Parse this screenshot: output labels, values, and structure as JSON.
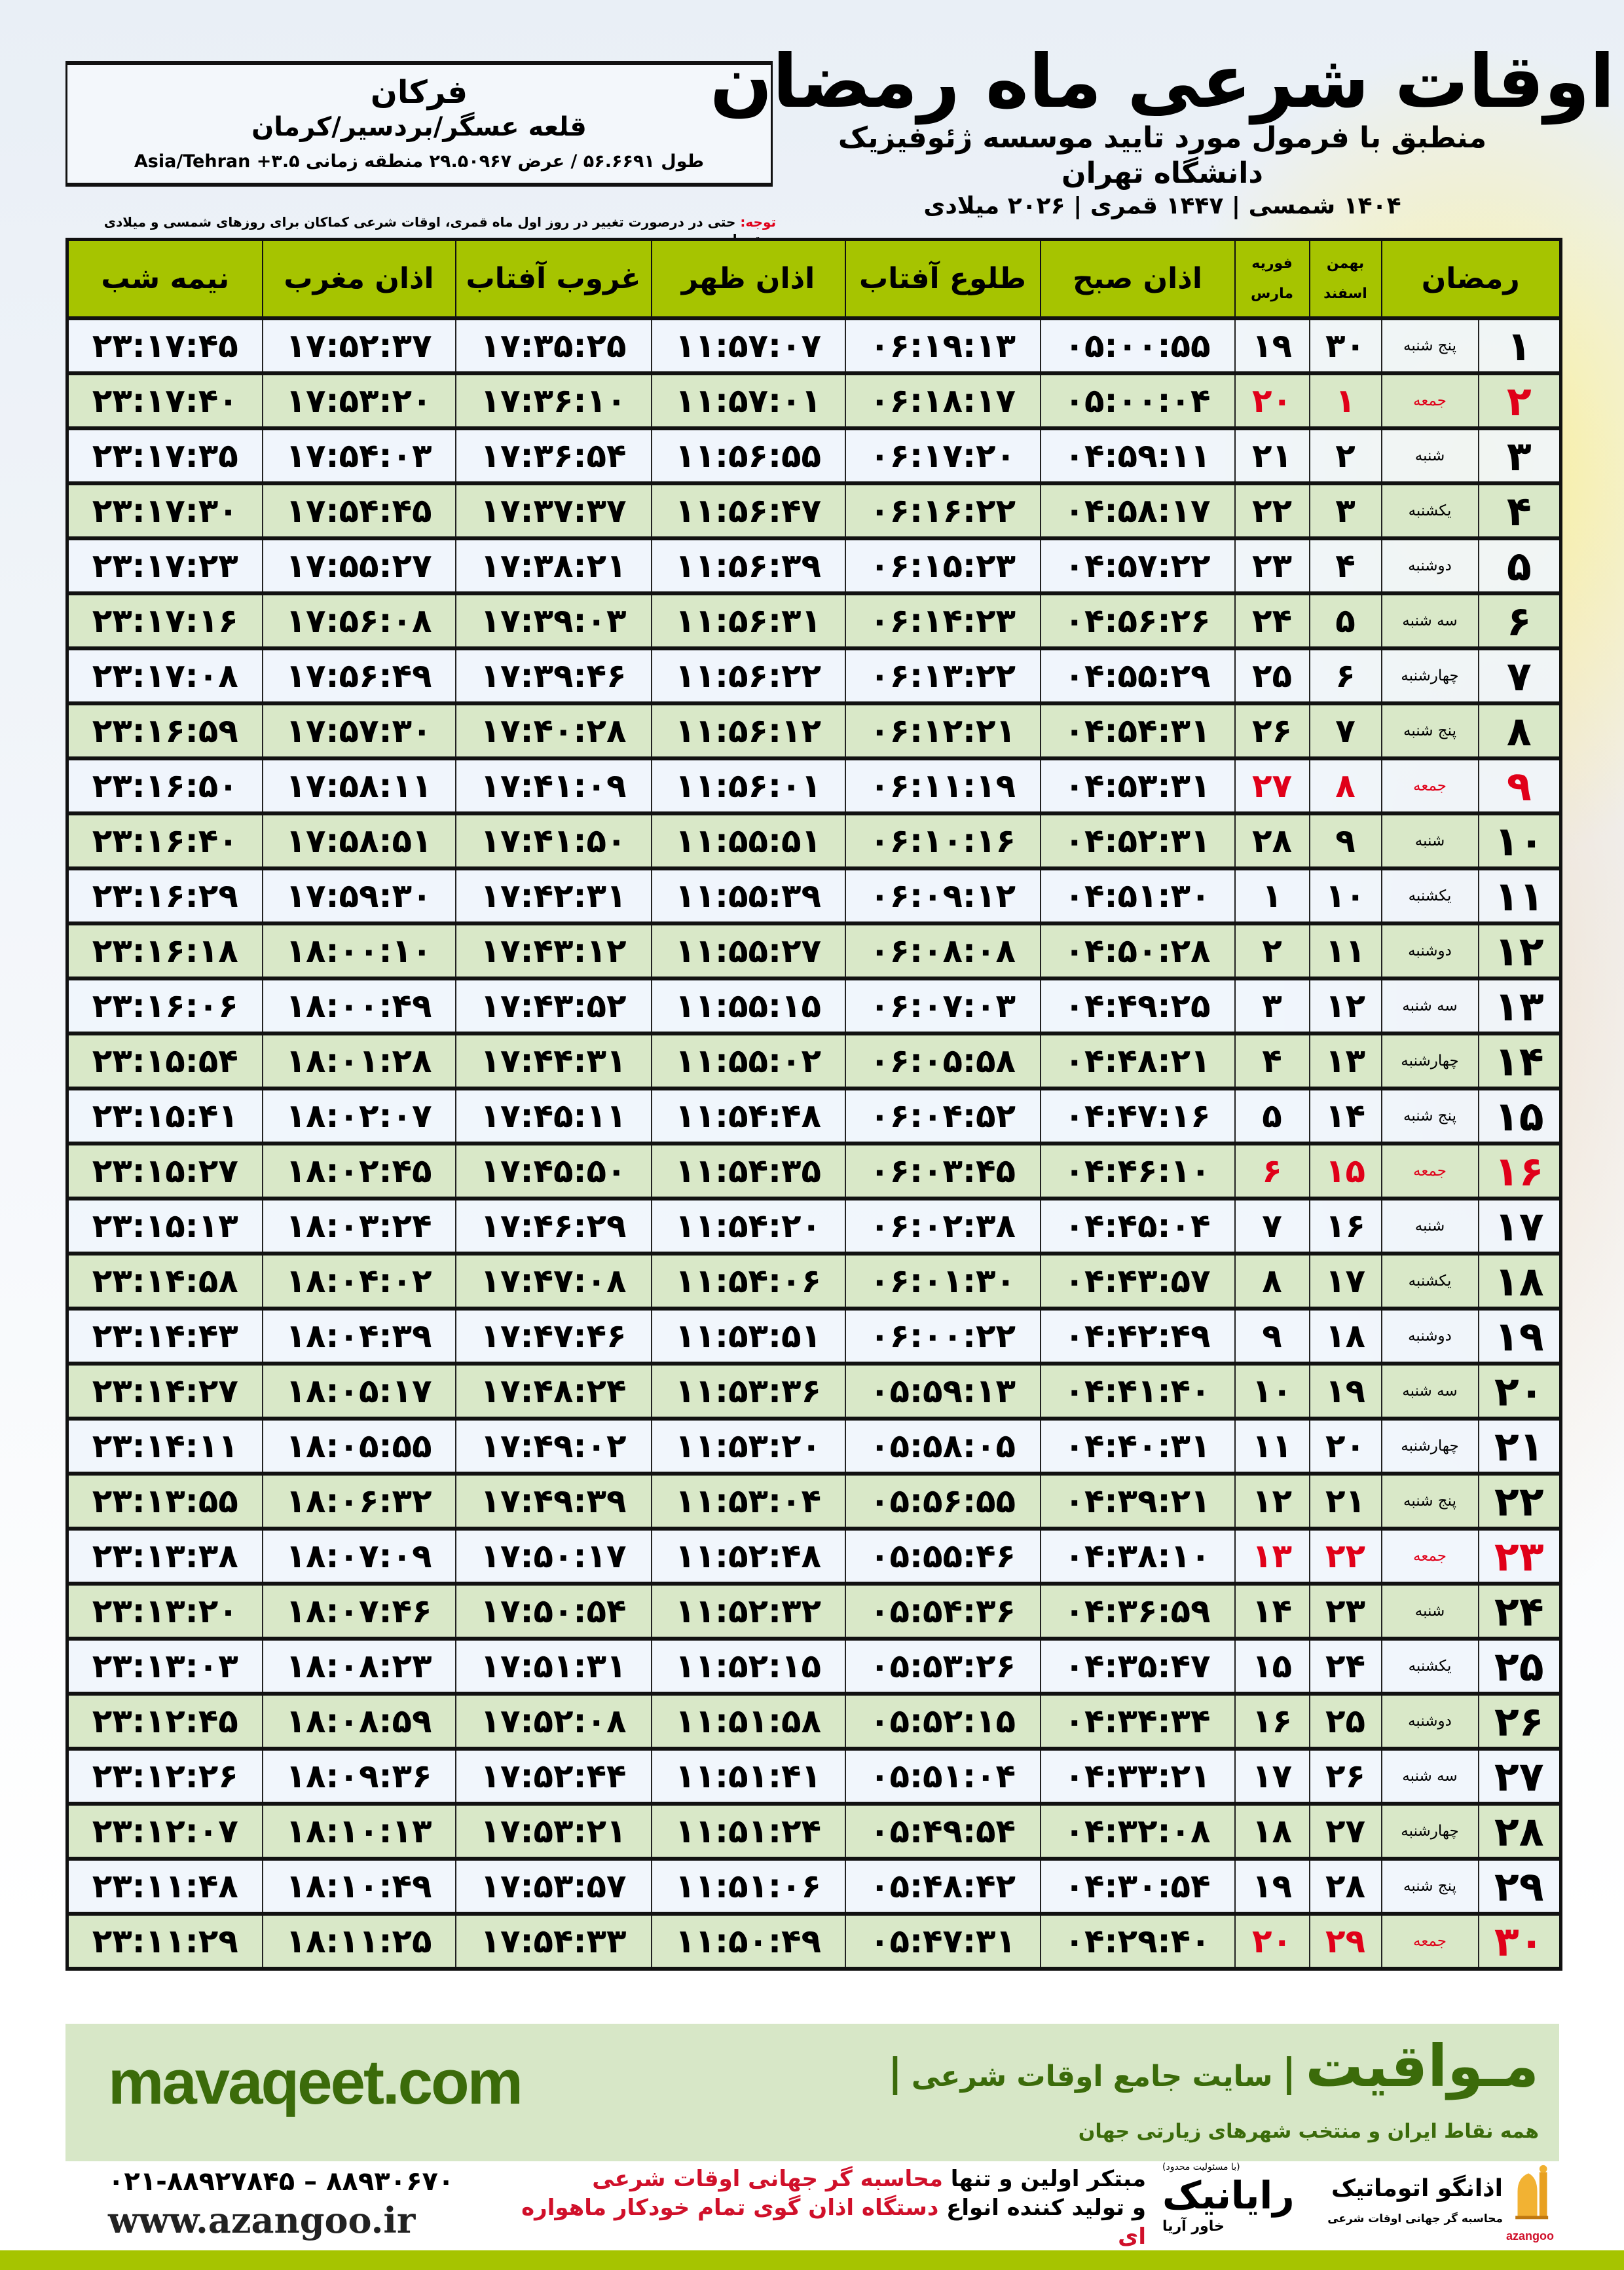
{
  "location": {
    "city": "فرکان",
    "region": "قلعه عسگر/بردسیر/کرمان",
    "coords": "طول ۵۶.۶۶۹۱ / عرض ۲۹.۵۰۹۶۷ منطقه زمانی ۳.۵+ Asia/Tehran"
  },
  "header": {
    "title": "اوقات شرعی ماه رمضان",
    "subtitle": "منطبق با فرمول مورد تایید موسسه ژئوفیزیک دانشگاه تهران",
    "dateline": "۱۴۰۴ شمسی | ۱۴۴۷ قمری | ۲۰۲۶ میلادی"
  },
  "note": {
    "label": "توجه:",
    "text": " حتی در درصورت تغییر در روز اول ماه قمری، اوقات شرعی کماکان برای روزهای شمسی و میلادی معتبر است."
  },
  "table": {
    "headers": {
      "ramadan": "رمضان",
      "shamsi_top": "بهمن",
      "shamsi_bottom": "اسفند",
      "miladi_top": "فوریه",
      "miladi_bottom": "مارس",
      "fajr": "اذان صبح",
      "sunrise": "طلوع آفتاب",
      "dhuhr": "اذان ظهر",
      "sunset": "غروب آفتاب",
      "maghrib": "اذان مغرب",
      "midnight": "نیمه شب"
    },
    "holiday_weekday": "جمعه",
    "colors": {
      "header": "#a6c400",
      "row_alt": "#d9e8c8",
      "holiday": "#e00019"
    },
    "rows": [
      [
        "۱",
        "پنج شنبه",
        "۳۰",
        "۱۹",
        "۰۵:۰۰:۵۵",
        "۰۶:۱۹:۱۳",
        "۱۱:۵۷:۰۷",
        "۱۷:۳۵:۲۵",
        "۱۷:۵۲:۳۷",
        "۲۳:۱۷:۴۵"
      ],
      [
        "۲",
        "جمعه",
        "۱",
        "۲۰",
        "۰۵:۰۰:۰۴",
        "۰۶:۱۸:۱۷",
        "۱۱:۵۷:۰۱",
        "۱۷:۳۶:۱۰",
        "۱۷:۵۳:۲۰",
        "۲۳:۱۷:۴۰"
      ],
      [
        "۳",
        "شنبه",
        "۲",
        "۲۱",
        "۰۴:۵۹:۱۱",
        "۰۶:۱۷:۲۰",
        "۱۱:۵۶:۵۵",
        "۱۷:۳۶:۵۴",
        "۱۷:۵۴:۰۳",
        "۲۳:۱۷:۳۵"
      ],
      [
        "۴",
        "یکشنبه",
        "۳",
        "۲۲",
        "۰۴:۵۸:۱۷",
        "۰۶:۱۶:۲۲",
        "۱۱:۵۶:۴۷",
        "۱۷:۳۷:۳۷",
        "۱۷:۵۴:۴۵",
        "۲۳:۱۷:۳۰"
      ],
      [
        "۵",
        "دوشنبه",
        "۴",
        "۲۳",
        "۰۴:۵۷:۲۲",
        "۰۶:۱۵:۲۳",
        "۱۱:۵۶:۳۹",
        "۱۷:۳۸:۲۱",
        "۱۷:۵۵:۲۷",
        "۲۳:۱۷:۲۳"
      ],
      [
        "۶",
        "سه شنبه",
        "۵",
        "۲۴",
        "۰۴:۵۶:۲۶",
        "۰۶:۱۴:۲۳",
        "۱۱:۵۶:۳۱",
        "۱۷:۳۹:۰۳",
        "۱۷:۵۶:۰۸",
        "۲۳:۱۷:۱۶"
      ],
      [
        "۷",
        "چهارشنبه",
        "۶",
        "۲۵",
        "۰۴:۵۵:۲۹",
        "۰۶:۱۳:۲۲",
        "۱۱:۵۶:۲۲",
        "۱۷:۳۹:۴۶",
        "۱۷:۵۶:۴۹",
        "۲۳:۱۷:۰۸"
      ],
      [
        "۸",
        "پنج شنبه",
        "۷",
        "۲۶",
        "۰۴:۵۴:۳۱",
        "۰۶:۱۲:۲۱",
        "۱۱:۵۶:۱۲",
        "۱۷:۴۰:۲۸",
        "۱۷:۵۷:۳۰",
        "۲۳:۱۶:۵۹"
      ],
      [
        "۹",
        "جمعه",
        "۸",
        "۲۷",
        "۰۴:۵۳:۳۱",
        "۰۶:۱۱:۱۹",
        "۱۱:۵۶:۰۱",
        "۱۷:۴۱:۰۹",
        "۱۷:۵۸:۱۱",
        "۲۳:۱۶:۵۰"
      ],
      [
        "۱۰",
        "شنبه",
        "۹",
        "۲۸",
        "۰۴:۵۲:۳۱",
        "۰۶:۱۰:۱۶",
        "۱۱:۵۵:۵۱",
        "۱۷:۴۱:۵۰",
        "۱۷:۵۸:۵۱",
        "۲۳:۱۶:۴۰"
      ],
      [
        "۱۱",
        "یکشنبه",
        "۱۰",
        "۱",
        "۰۴:۵۱:۳۰",
        "۰۶:۰۹:۱۲",
        "۱۱:۵۵:۳۹",
        "۱۷:۴۲:۳۱",
        "۱۷:۵۹:۳۰",
        "۲۳:۱۶:۲۹"
      ],
      [
        "۱۲",
        "دوشنبه",
        "۱۱",
        "۲",
        "۰۴:۵۰:۲۸",
        "۰۶:۰۸:۰۸",
        "۱۱:۵۵:۲۷",
        "۱۷:۴۳:۱۲",
        "۱۸:۰۰:۱۰",
        "۲۳:۱۶:۱۸"
      ],
      [
        "۱۳",
        "سه شنبه",
        "۱۲",
        "۳",
        "۰۴:۴۹:۲۵",
        "۰۶:۰۷:۰۳",
        "۱۱:۵۵:۱۵",
        "۱۷:۴۳:۵۲",
        "۱۸:۰۰:۴۹",
        "۲۳:۱۶:۰۶"
      ],
      [
        "۱۴",
        "چهارشنبه",
        "۱۳",
        "۴",
        "۰۴:۴۸:۲۱",
        "۰۶:۰۵:۵۸",
        "۱۱:۵۵:۰۲",
        "۱۷:۴۴:۳۱",
        "۱۸:۰۱:۲۸",
        "۲۳:۱۵:۵۴"
      ],
      [
        "۱۵",
        "پنج شنبه",
        "۱۴",
        "۵",
        "۰۴:۴۷:۱۶",
        "۰۶:۰۴:۵۲",
        "۱۱:۵۴:۴۸",
        "۱۷:۴۵:۱۱",
        "۱۸:۰۲:۰۷",
        "۲۳:۱۵:۴۱"
      ],
      [
        "۱۶",
        "جمعه",
        "۱۵",
        "۶",
        "۰۴:۴۶:۱۰",
        "۰۶:۰۳:۴۵",
        "۱۱:۵۴:۳۵",
        "۱۷:۴۵:۵۰",
        "۱۸:۰۲:۴۵",
        "۲۳:۱۵:۲۷"
      ],
      [
        "۱۷",
        "شنبه",
        "۱۶",
        "۷",
        "۰۴:۴۵:۰۴",
        "۰۶:۰۲:۳۸",
        "۱۱:۵۴:۲۰",
        "۱۷:۴۶:۲۹",
        "۱۸:۰۳:۲۴",
        "۲۳:۱۵:۱۳"
      ],
      [
        "۱۸",
        "یکشنبه",
        "۱۷",
        "۸",
        "۰۴:۴۳:۵۷",
        "۰۶:۰۱:۳۰",
        "۱۱:۵۴:۰۶",
        "۱۷:۴۷:۰۸",
        "۱۸:۰۴:۰۲",
        "۲۳:۱۴:۵۸"
      ],
      [
        "۱۹",
        "دوشنبه",
        "۱۸",
        "۹",
        "۰۴:۴۲:۴۹",
        "۰۶:۰۰:۲۲",
        "۱۱:۵۳:۵۱",
        "۱۷:۴۷:۴۶",
        "۱۸:۰۴:۳۹",
        "۲۳:۱۴:۴۳"
      ],
      [
        "۲۰",
        "سه شنبه",
        "۱۹",
        "۱۰",
        "۰۴:۴۱:۴۰",
        "۰۵:۵۹:۱۳",
        "۱۱:۵۳:۳۶",
        "۱۷:۴۸:۲۴",
        "۱۸:۰۵:۱۷",
        "۲۳:۱۴:۲۷"
      ],
      [
        "۲۱",
        "چهارشنبه",
        "۲۰",
        "۱۱",
        "۰۴:۴۰:۳۱",
        "۰۵:۵۸:۰۵",
        "۱۱:۵۳:۲۰",
        "۱۷:۴۹:۰۲",
        "۱۸:۰۵:۵۵",
        "۲۳:۱۴:۱۱"
      ],
      [
        "۲۲",
        "پنج شنبه",
        "۲۱",
        "۱۲",
        "۰۴:۳۹:۲۱",
        "۰۵:۵۶:۵۵",
        "۱۱:۵۳:۰۴",
        "۱۷:۴۹:۳۹",
        "۱۸:۰۶:۳۲",
        "۲۳:۱۳:۵۵"
      ],
      [
        "۲۳",
        "جمعه",
        "۲۲",
        "۱۳",
        "۰۴:۳۸:۱۰",
        "۰۵:۵۵:۴۶",
        "۱۱:۵۲:۴۸",
        "۱۷:۵۰:۱۷",
        "۱۸:۰۷:۰۹",
        "۲۳:۱۳:۳۸"
      ],
      [
        "۲۴",
        "شنبه",
        "۲۳",
        "۱۴",
        "۰۴:۳۶:۵۹",
        "۰۵:۵۴:۳۶",
        "۱۱:۵۲:۳۲",
        "۱۷:۵۰:۵۴",
        "۱۸:۰۷:۴۶",
        "۲۳:۱۳:۲۰"
      ],
      [
        "۲۵",
        "یکشنبه",
        "۲۴",
        "۱۵",
        "۰۴:۳۵:۴۷",
        "۰۵:۵۳:۲۶",
        "۱۱:۵۲:۱۵",
        "۱۷:۵۱:۳۱",
        "۱۸:۰۸:۲۳",
        "۲۳:۱۳:۰۳"
      ],
      [
        "۲۶",
        "دوشنبه",
        "۲۵",
        "۱۶",
        "۰۴:۳۴:۳۴",
        "۰۵:۵۲:۱۵",
        "۱۱:۵۱:۵۸",
        "۱۷:۵۲:۰۸",
        "۱۸:۰۸:۵۹",
        "۲۳:۱۲:۴۵"
      ],
      [
        "۲۷",
        "سه شنبه",
        "۲۶",
        "۱۷",
        "۰۴:۳۳:۲۱",
        "۰۵:۵۱:۰۴",
        "۱۱:۵۱:۴۱",
        "۱۷:۵۲:۴۴",
        "۱۸:۰۹:۳۶",
        "۲۳:۱۲:۲۶"
      ],
      [
        "۲۸",
        "چهارشنبه",
        "۲۷",
        "۱۸",
        "۰۴:۳۲:۰۸",
        "۰۵:۴۹:۵۴",
        "۱۱:۵۱:۲۴",
        "۱۷:۵۳:۲۱",
        "۱۸:۱۰:۱۳",
        "۲۳:۱۲:۰۷"
      ],
      [
        "۲۹",
        "پنج شنبه",
        "۲۸",
        "۱۹",
        "۰۴:۳۰:۵۴",
        "۰۵:۴۸:۴۲",
        "۱۱:۵۱:۰۶",
        "۱۷:۵۳:۵۷",
        "۱۸:۱۰:۴۹",
        "۲۳:۱۱:۴۸"
      ],
      [
        "۳۰",
        "جمعه",
        "۲۹",
        "۲۰",
        "۰۴:۲۹:۴۰",
        "۰۵:۴۷:۳۱",
        "۱۱:۵۰:۴۹",
        "۱۷:۵۴:۳۳",
        "۱۸:۱۱:۲۵",
        "۲۳:۱۱:۲۹"
      ]
    ]
  },
  "footer": {
    "site": "mavaqeet.com",
    "brand_logo": "مـواقیت",
    "brand_sep": "|",
    "brand_slogan": "سایت جامع اوقات شرعی",
    "brand_sub": "همه نقاط ایران و منتخب شهرهای زیارتی جهان",
    "phone": "۰۲۱-۸۸۹۲۷۸۴۵ – ۸۸۹۳۰۶۷۰",
    "web": "www.azangoo.ir",
    "promo_line1_a": "مبتکر اولین و تنها ",
    "promo_line1_b": "محاسبه گر جهانی اوقات شرعی",
    "promo_line2_a": "و تولید کننده انواع ",
    "promo_line2_b": "دستگاه اذان گوی تمام خودکار ماهواره ای",
    "rayanik_note": "(با مسئولیت محدود)",
    "rayanik_name": "رایانیک",
    "rayanik_sub": "خاور آریا",
    "azangoo_name": "اذانگو اتوماتیک",
    "azangoo_sub": "محاسبه گر جهانی اوقات شرعی",
    "azangoo_latin": "azangoo",
    "colors": {
      "band": "#d7e7c7",
      "brand": "#3b6b0a",
      "accent": "#d0102a",
      "bar": "#a6c400"
    }
  }
}
